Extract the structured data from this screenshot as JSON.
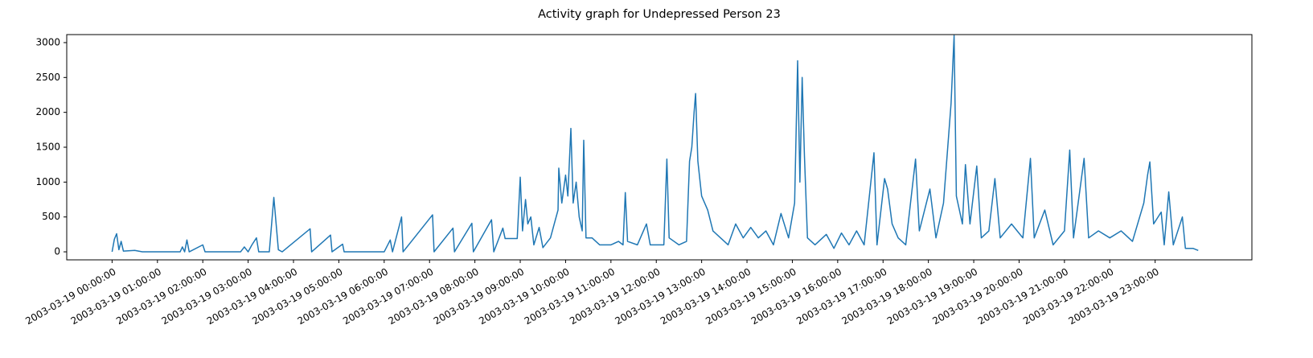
{
  "chart_data": {
    "type": "line",
    "title": "Activity graph for Undepressed Person 23",
    "x": [
      "2003-03-19 00:00:00",
      "2003-03-19 00:03:00",
      "2003-03-19 00:06:00",
      "2003-03-19 00:09:00",
      "2003-03-19 00:12:00",
      "2003-03-19 00:15:00",
      "2003-03-19 00:30:00",
      "2003-03-19 00:40:00",
      "2003-03-19 01:30:00",
      "2003-03-19 01:33:00",
      "2003-03-19 01:36:00",
      "2003-03-19 01:39:00",
      "2003-03-19 01:42:00",
      "2003-03-19 02:00:00",
      "2003-03-19 02:03:00",
      "2003-03-19 02:50:00",
      "2003-03-19 02:55:00",
      "2003-03-19 03:00:00",
      "2003-03-19 03:05:00",
      "2003-03-19 03:11:00",
      "2003-03-19 03:14:00",
      "2003-03-19 03:28:00",
      "2003-03-19 03:34:00",
      "2003-03-19 03:40:00",
      "2003-03-19 03:45:00",
      "2003-03-19 04:22:00",
      "2003-03-19 04:24:00",
      "2003-03-19 04:49:00",
      "2003-03-19 04:51:00",
      "2003-03-19 05:05:00",
      "2003-03-19 05:07:00",
      "2003-03-19 06:00:00",
      "2003-03-19 06:08:00",
      "2003-03-19 06:11:00",
      "2003-03-19 06:23:00",
      "2003-03-19 06:25:00",
      "2003-03-19 07:04:00",
      "2003-03-19 07:06:00",
      "2003-03-19 07:31:00",
      "2003-03-19 07:33:00",
      "2003-03-19 07:56:00",
      "2003-03-19 07:58:00",
      "2003-03-19 08:22:00",
      "2003-03-19 08:25:00",
      "2003-03-19 08:37:00",
      "2003-03-19 08:40:00",
      "2003-03-19 08:56:00",
      "2003-03-19 09:00:00",
      "2003-03-19 09:03:00",
      "2003-03-19 09:07:00",
      "2003-03-19 09:10:00",
      "2003-03-19 09:14:00",
      "2003-03-19 09:18:00",
      "2003-03-19 09:25:00",
      "2003-03-19 09:30:00",
      "2003-03-19 09:40:00",
      "2003-03-19 09:45:00",
      "2003-03-19 09:50:00",
      "2003-03-19 09:51:00",
      "2003-03-19 09:55:00",
      "2003-03-19 10:00:00",
      "2003-03-19 10:03:00",
      "2003-03-19 10:07:00",
      "2003-03-19 10:10:00",
      "2003-03-19 10:14:00",
      "2003-03-19 10:18:00",
      "2003-03-19 10:22:00",
      "2003-03-19 10:24:00",
      "2003-03-19 10:27:00",
      "2003-03-19 10:35:00",
      "2003-03-19 10:45:00",
      "2003-03-19 11:00:00",
      "2003-03-19 11:10:00",
      "2003-03-19 11:16:00",
      "2003-03-19 11:19:00",
      "2003-03-19 11:22:00",
      "2003-03-19 11:35:00",
      "2003-03-19 11:47:00",
      "2003-03-19 11:52:00",
      "2003-03-19 12:10:00",
      "2003-03-19 12:14:00",
      "2003-03-19 12:17:00",
      "2003-03-19 12:30:00",
      "2003-03-19 12:40:00",
      "2003-03-19 12:44:00",
      "2003-03-19 12:47:00",
      "2003-03-19 12:50:00",
      "2003-03-19 12:52:00",
      "2003-03-19 12:55:00",
      "2003-03-19 13:00:00",
      "2003-03-19 13:08:00",
      "2003-03-19 13:15:00",
      "2003-03-19 13:25:00",
      "2003-03-19 13:35:00",
      "2003-03-19 13:45:00",
      "2003-03-19 13:55:00",
      "2003-03-19 14:05:00",
      "2003-03-19 14:15:00",
      "2003-03-19 14:25:00",
      "2003-03-19 14:35:00",
      "2003-03-19 14:45:00",
      "2003-03-19 14:55:00",
      "2003-03-19 15:03:00",
      "2003-03-19 15:07:00",
      "2003-03-19 15:10:00",
      "2003-03-19 15:13:00",
      "2003-03-19 15:16:00",
      "2003-03-19 15:20:00",
      "2003-03-19 15:30:00",
      "2003-03-19 15:45:00",
      "2003-03-19 15:55:00",
      "2003-03-19 16:05:00",
      "2003-03-19 16:15:00",
      "2003-03-19 16:25:00",
      "2003-03-19 16:35:00",
      "2003-03-19 16:48:00",
      "2003-03-19 16:52:00",
      "2003-03-19 17:02:00",
      "2003-03-19 17:06:00",
      "2003-03-19 17:12:00",
      "2003-03-19 17:20:00",
      "2003-03-19 17:30:00",
      "2003-03-19 17:43:00",
      "2003-03-19 17:48:00",
      "2003-03-19 18:02:00",
      "2003-03-19 18:10:00",
      "2003-03-19 18:20:00",
      "2003-03-19 18:27:00",
      "2003-03-19 18:30:00",
      "2003-03-19 18:34:00",
      "2003-03-19 18:37:00",
      "2003-03-19 18:45:00",
      "2003-03-19 18:49:00",
      "2003-03-19 18:55:00",
      "2003-03-19 19:04:00",
      "2003-03-19 19:10:00",
      "2003-03-19 19:20:00",
      "2003-03-19 19:28:00",
      "2003-03-19 19:35:00",
      "2003-03-19 19:50:00",
      "2003-03-19 20:05:00",
      "2003-03-19 20:15:00",
      "2003-03-19 20:20:00",
      "2003-03-19 20:34:00",
      "2003-03-19 20:45:00",
      "2003-03-19 21:00:00",
      "2003-03-19 21:07:00",
      "2003-03-19 21:12:00",
      "2003-03-19 21:26:00",
      "2003-03-19 21:32:00",
      "2003-03-19 21:45:00",
      "2003-03-19 22:00:00",
      "2003-03-19 22:15:00",
      "2003-03-19 22:30:00",
      "2003-03-19 22:45:00",
      "2003-03-19 22:50:00",
      "2003-03-19 22:53:00",
      "2003-03-19 22:58:00",
      "2003-03-19 23:08:00",
      "2003-03-19 23:12:00",
      "2003-03-19 23:18:00",
      "2003-03-19 23:24:00",
      "2003-03-19 23:36:00",
      "2003-03-19 23:40:00",
      "2003-03-19 23:50:00",
      "2003-03-19 23:57:00"
    ],
    "series": [
      {
        "color": "#1f77b4",
        "values": [
          0,
          180,
          260,
          30,
          150,
          10,
          20,
          0,
          0,
          70,
          0,
          170,
          0,
          100,
          0,
          0,
          70,
          0,
          100,
          200,
          0,
          0,
          780,
          30,
          0,
          330,
          0,
          240,
          0,
          110,
          0,
          0,
          170,
          0,
          500,
          0,
          530,
          0,
          340,
          0,
          410,
          0,
          460,
          0,
          340,
          190,
          190,
          1070,
          300,
          750,
          400,
          500,
          100,
          350,
          60,
          200,
          400,
          600,
          1200,
          700,
          1100,
          800,
          1770,
          700,
          1000,
          500,
          300,
          1600,
          200,
          200,
          100,
          100,
          150,
          100,
          850,
          150,
          100,
          400,
          100,
          100,
          1330,
          200,
          100,
          150,
          1300,
          1500,
          2000,
          2270,
          1300,
          800,
          600,
          300,
          200,
          100,
          400,
          200,
          350,
          200,
          300,
          100,
          550,
          200,
          700,
          2740,
          1000,
          2500,
          1380,
          200,
          100,
          250,
          50,
          270,
          100,
          300,
          100,
          1420,
          100,
          1050,
          900,
          400,
          200,
          100,
          1330,
          300,
          900,
          200,
          700,
          1700,
          2130,
          3100,
          800,
          400,
          1250,
          400,
          1230,
          200,
          300,
          1050,
          200,
          400,
          200,
          1340,
          200,
          600,
          100,
          300,
          1460,
          200,
          1340,
          200,
          300,
          200,
          300,
          150,
          700,
          1100,
          1290,
          400,
          570,
          100,
          860,
          100,
          500,
          50,
          50,
          20
        ]
      }
    ],
    "xlim": [
      "2003-03-18 23:00:00",
      "2003-03-20 01:08:00"
    ],
    "xticks": [
      "2003-03-19 00:00:00",
      "2003-03-19 01:00:00",
      "2003-03-19 02:00:00",
      "2003-03-19 03:00:00",
      "2003-03-19 04:00:00",
      "2003-03-19 05:00:00",
      "2003-03-19 06:00:00",
      "2003-03-19 07:00:00",
      "2003-03-19 08:00:00",
      "2003-03-19 09:00:00",
      "2003-03-19 10:00:00",
      "2003-03-19 11:00:00",
      "2003-03-19 12:00:00",
      "2003-03-19 13:00:00",
      "2003-03-19 14:00:00",
      "2003-03-19 15:00:00",
      "2003-03-19 16:00:00",
      "2003-03-19 17:00:00",
      "2003-03-19 18:00:00",
      "2003-03-19 19:00:00",
      "2003-03-19 20:00:00",
      "2003-03-19 21:00:00",
      "2003-03-19 22:00:00",
      "2003-03-19 23:00:00"
    ],
    "ylim": [
      -115,
      3115
    ],
    "yticks": [
      0,
      500,
      1000,
      1500,
      2000,
      2500,
      3000
    ],
    "grid": false
  }
}
